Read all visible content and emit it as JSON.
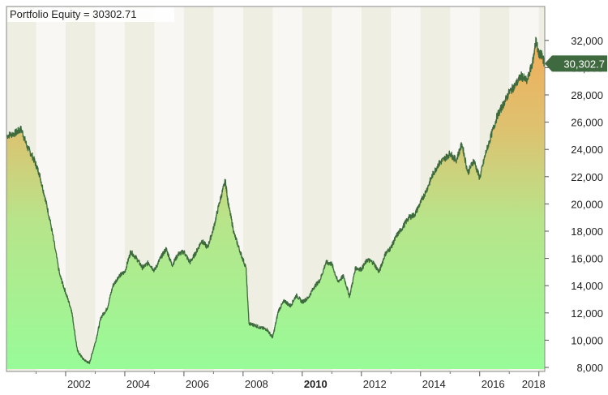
{
  "chart_data": {
    "type": "area",
    "title": "Portfolio Equity = 30302.71",
    "last_value_label": "30,302.7",
    "x_ticks": [
      "2002",
      "2004",
      "2006",
      "2008",
      "2010",
      "2012",
      "2014",
      "2016",
      "2018"
    ],
    "x_tick_bold": "2010",
    "y_ticks": [
      "8,000",
      "10,000",
      "12,000",
      "14,000",
      "16,000",
      "18,000",
      "20,000",
      "22,000",
      "24,000",
      "26,000",
      "28,000",
      "30,000",
      "32,000"
    ],
    "x_range": [
      2000.0,
      2018.2
    ],
    "ylim": [
      8000,
      33000
    ],
    "grid": false,
    "alternating_year_bands": true,
    "series": [
      {
        "x": [
          2000.0,
          2000.3,
          2000.5,
          2000.7,
          2000.9,
          2001.1,
          2001.3,
          2001.5,
          2001.8,
          2002.0,
          2002.2,
          2002.4,
          2002.6,
          2002.8,
          2003.0,
          2003.2,
          2003.4,
          2003.6,
          2003.8,
          2004.0,
          2004.2,
          2004.4,
          2004.6,
          2004.8,
          2005.0,
          2005.2,
          2005.4,
          2005.6,
          2005.8,
          2006.0,
          2006.2,
          2006.4,
          2006.6,
          2006.8,
          2007.0,
          2007.2,
          2007.4,
          2007.5,
          2007.7,
          2007.9,
          2008.1,
          2008.2,
          2008.4,
          2008.6,
          2008.8,
          2009.0,
          2009.2,
          2009.4,
          2009.6,
          2009.8,
          2010.0,
          2010.2,
          2010.4,
          2010.6,
          2010.8,
          2011.0,
          2011.2,
          2011.4,
          2011.6,
          2011.8,
          2012.0,
          2012.2,
          2012.4,
          2012.6,
          2012.8,
          2013.0,
          2013.2,
          2013.4,
          2013.6,
          2013.8,
          2014.0,
          2014.2,
          2014.4,
          2014.6,
          2014.8,
          2015.0,
          2015.2,
          2015.4,
          2015.6,
          2015.8,
          2016.0,
          2016.2,
          2016.4,
          2016.6,
          2016.8,
          2017.0,
          2017.2,
          2017.4,
          2017.6,
          2017.8,
          2017.9,
          2018.0,
          2018.1,
          2018.2
        ],
        "y": [
          25000,
          25200,
          25500,
          24200,
          23400,
          22300,
          20500,
          18500,
          14800,
          13500,
          12200,
          9200,
          8600,
          8300,
          9800,
          11700,
          12300,
          14000,
          14700,
          15000,
          16500,
          16000,
          15300,
          15700,
          15100,
          16000,
          16700,
          15500,
          16300,
          16500,
          15700,
          16400,
          17300,
          16800,
          18200,
          20100,
          21700,
          20000,
          17800,
          16500,
          15300,
          11200,
          11100,
          10900,
          10800,
          10200,
          12200,
          12900,
          12500,
          13300,
          12800,
          13100,
          13900,
          14400,
          15700,
          15600,
          14300,
          14700,
          13200,
          15300,
          15200,
          15900,
          15700,
          15000,
          16300,
          16800,
          17700,
          18300,
          19000,
          19200,
          20100,
          21000,
          22100,
          22900,
          23300,
          23700,
          23200,
          24400,
          22300,
          23200,
          21900,
          23700,
          25100,
          26500,
          27300,
          28200,
          28700,
          29400,
          29000,
          30500,
          32000,
          31000,
          30900,
          30302.71
        ]
      }
    ]
  }
}
